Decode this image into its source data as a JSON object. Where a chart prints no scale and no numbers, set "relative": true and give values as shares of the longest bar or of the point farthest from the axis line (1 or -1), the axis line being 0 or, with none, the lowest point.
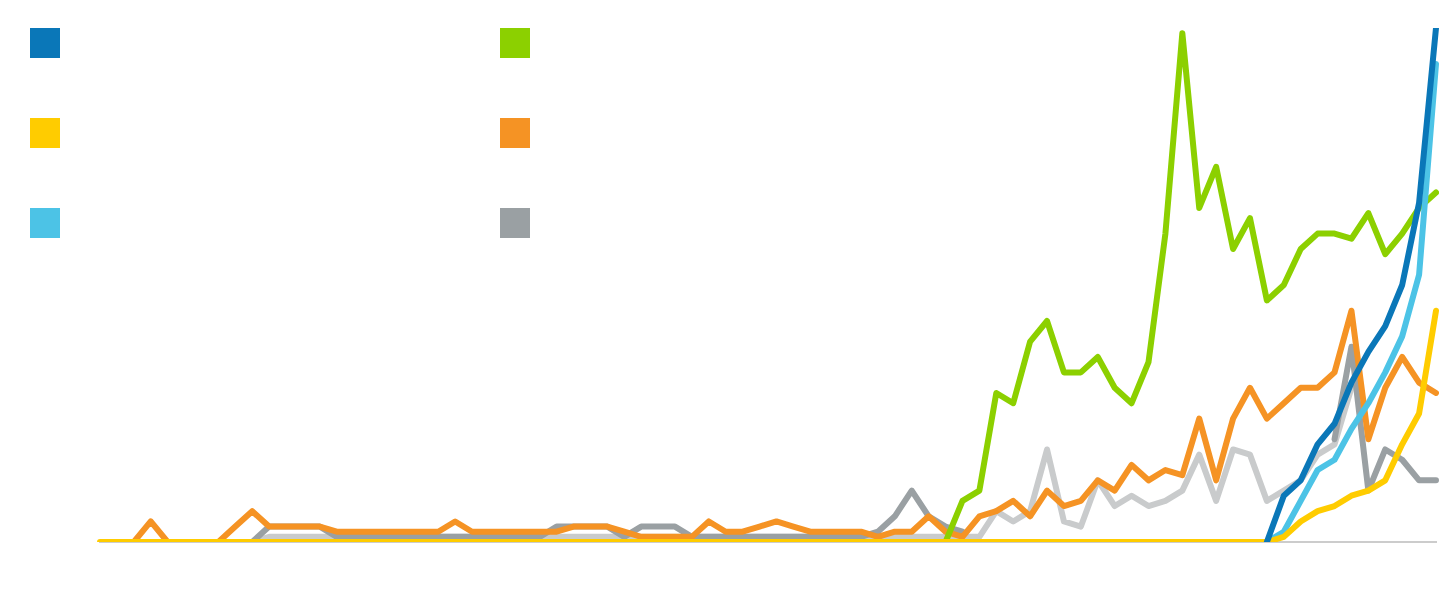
{
  "chart_data": {
    "type": "line",
    "relative": true,
    "grid": false,
    "marker": "none",
    "line_style": "solid",
    "categories": [
      null,
      null,
      null,
      null,
      null,
      null,
      null,
      null,
      null,
      null,
      null,
      null,
      null,
      null,
      null,
      null,
      null,
      null,
      null,
      null,
      null,
      null,
      null,
      null,
      null,
      null,
      null,
      null,
      null,
      null,
      null,
      null,
      null,
      null,
      null,
      null,
      null,
      null,
      null,
      null,
      null,
      null,
      null,
      null,
      null,
      null,
      null,
      null,
      null,
      null,
      null,
      null,
      null,
      null,
      null,
      null,
      null,
      null,
      null,
      null,
      null,
      null,
      null,
      null,
      null,
      null,
      null,
      null,
      null,
      null,
      null,
      null,
      null,
      null,
      null,
      null,
      null,
      null,
      null,
      null
    ],
    "series": [
      {
        "color": "#0a77b8",
        "values": [
          null,
          null,
          null,
          null,
          null,
          null,
          null,
          null,
          null,
          null,
          null,
          null,
          null,
          null,
          null,
          null,
          null,
          null,
          null,
          null,
          null,
          null,
          null,
          null,
          null,
          null,
          null,
          null,
          null,
          null,
          null,
          null,
          null,
          null,
          null,
          null,
          null,
          null,
          null,
          null,
          null,
          null,
          null,
          null,
          null,
          null,
          null,
          null,
          null,
          null,
          null,
          null,
          null,
          null,
          null,
          null,
          null,
          null,
          null,
          null,
          null,
          null,
          null,
          null,
          null,
          null,
          null,
          null,
          null,
          0,
          0.09,
          0.12,
          0.19,
          0.23,
          0.31,
          0.37,
          0.42,
          0.5,
          0.66,
          1
        ]
      },
      {
        "color": "#ffcc00",
        "values": [
          0,
          0,
          0,
          0,
          0,
          0,
          0,
          0,
          0,
          0,
          0,
          0,
          0,
          0,
          0,
          0,
          0,
          0,
          0,
          0,
          0,
          0,
          0,
          0,
          0,
          0,
          0,
          0,
          0,
          0,
          0,
          0,
          0,
          0,
          0,
          0,
          0,
          0,
          0,
          0,
          0,
          0,
          0,
          0,
          0,
          0,
          0,
          0,
          0,
          0,
          0,
          0,
          0,
          0,
          0,
          0,
          0,
          0,
          0,
          0,
          0,
          0,
          0,
          0,
          0,
          0,
          0,
          0,
          0,
          0,
          0.01,
          0.04,
          0.06,
          0.07,
          0.09,
          0.1,
          0.12,
          0.19,
          0.25,
          0.45
        ]
      },
      {
        "color": "#4cc3e6",
        "values": [
          null,
          null,
          null,
          null,
          null,
          null,
          null,
          null,
          null,
          null,
          null,
          null,
          null,
          null,
          null,
          null,
          null,
          null,
          null,
          null,
          null,
          null,
          null,
          null,
          null,
          null,
          null,
          null,
          null,
          null,
          null,
          null,
          null,
          null,
          null,
          null,
          null,
          null,
          null,
          null,
          null,
          null,
          null,
          null,
          null,
          null,
          null,
          null,
          null,
          null,
          null,
          null,
          null,
          null,
          null,
          null,
          null,
          null,
          null,
          null,
          null,
          null,
          null,
          null,
          null,
          null,
          null,
          null,
          null,
          0,
          0.02,
          0.08,
          0.14,
          0.16,
          0.22,
          0.27,
          0.33,
          0.4,
          0.52,
          0.93
        ]
      },
      {
        "color": "#8cd000",
        "values": [
          null,
          null,
          null,
          null,
          null,
          null,
          null,
          null,
          null,
          null,
          null,
          null,
          null,
          null,
          null,
          null,
          null,
          null,
          null,
          null,
          null,
          null,
          null,
          null,
          null,
          null,
          null,
          null,
          null,
          null,
          null,
          null,
          null,
          null,
          null,
          null,
          null,
          null,
          null,
          null,
          null,
          null,
          null,
          null,
          null,
          null,
          null,
          null,
          null,
          null,
          0,
          0.08,
          0.1,
          0.29,
          0.27,
          0.39,
          0.43,
          0.33,
          0.33,
          0.36,
          0.3,
          0.27,
          0.35,
          0.6,
          0.99,
          0.65,
          0.73,
          0.57,
          0.63,
          0.47,
          0.5,
          0.57,
          0.6,
          0.6,
          0.59,
          0.64,
          0.56,
          0.6,
          0.65,
          0.68
        ]
      },
      {
        "color": "#f59324",
        "values": [
          null,
          null,
          0,
          0.04,
          0,
          null,
          null,
          0,
          0.03,
          0.06,
          0.03,
          0.03,
          0.03,
          0.03,
          0.02,
          0.02,
          0.02,
          0.02,
          0.02,
          0.02,
          0.02,
          0.04,
          0.02,
          0.02,
          0.02,
          0.02,
          0.02,
          0.02,
          0.03,
          0.03,
          0.03,
          0.02,
          0.01,
          0.01,
          0.01,
          0.01,
          0.04,
          0.02,
          0.02,
          0.03,
          0.04,
          0.03,
          0.02,
          0.02,
          0.02,
          0.02,
          0.01,
          0.02,
          0.02,
          0.05,
          0.02,
          0.01,
          0.05,
          0.06,
          0.08,
          0.05,
          0.1,
          0.07,
          0.08,
          0.12,
          0.1,
          0.15,
          0.12,
          0.14,
          0.13,
          0.24,
          0.12,
          0.24,
          0.3,
          0.24,
          0.27,
          0.3,
          0.3,
          0.33,
          0.45,
          0.2,
          0.3,
          0.36,
          0.31,
          0.29
        ]
      },
      {
        "color": "#9aa0a3",
        "values": [
          null,
          null,
          null,
          null,
          null,
          null,
          null,
          null,
          null,
          0,
          0.03,
          0.03,
          0.03,
          0.03,
          0.01,
          0.01,
          0.01,
          0.01,
          0.01,
          0.01,
          0.01,
          0.01,
          0.01,
          0.01,
          0.01,
          0.01,
          0.01,
          0.03,
          0.03,
          0.03,
          0.03,
          0.01,
          0.03,
          0.03,
          0.03,
          0.01,
          0.01,
          0.01,
          0.01,
          0.01,
          0.01,
          0.01,
          0.01,
          0.01,
          0.01,
          0.01,
          0.02,
          0.05,
          0.1,
          0.05,
          0.03,
          0.02,
          null,
          null,
          null,
          null,
          null,
          null,
          null,
          null,
          null,
          null,
          null,
          null,
          null,
          null,
          null,
          null,
          null,
          null,
          null,
          null,
          null,
          0.2,
          0.38,
          0.1,
          0.18,
          0.16,
          0.12,
          0.12
        ]
      },
      {
        "color": "#c9cbcc",
        "values": [
          null,
          null,
          null,
          null,
          null,
          null,
          null,
          null,
          null,
          0,
          0.01,
          0.01,
          0.01,
          0.01,
          0.01,
          0.01,
          0.01,
          0.01,
          0.01,
          0.01,
          0.01,
          0.01,
          0.01,
          0.01,
          0.01,
          0.01,
          0.01,
          0.01,
          0.01,
          0.01,
          0.01,
          0.01,
          0.01,
          0.01,
          0.01,
          0.01,
          0.01,
          0.01,
          0.01,
          0.01,
          0.01,
          0.01,
          0.01,
          0.01,
          0.01,
          0.01,
          0.01,
          0.01,
          0.01,
          0.01,
          0.01,
          0.01,
          0.01,
          0.06,
          0.04,
          0.06,
          0.18,
          0.04,
          0.03,
          0.12,
          0.07,
          0.09,
          0.07,
          0.08,
          0.1,
          0.17,
          0.08,
          0.18,
          0.17,
          0.08,
          0.1,
          0.12,
          0.17,
          0.19,
          0.3,
          null,
          null,
          null,
          null,
          null
        ]
      }
    ]
  }
}
